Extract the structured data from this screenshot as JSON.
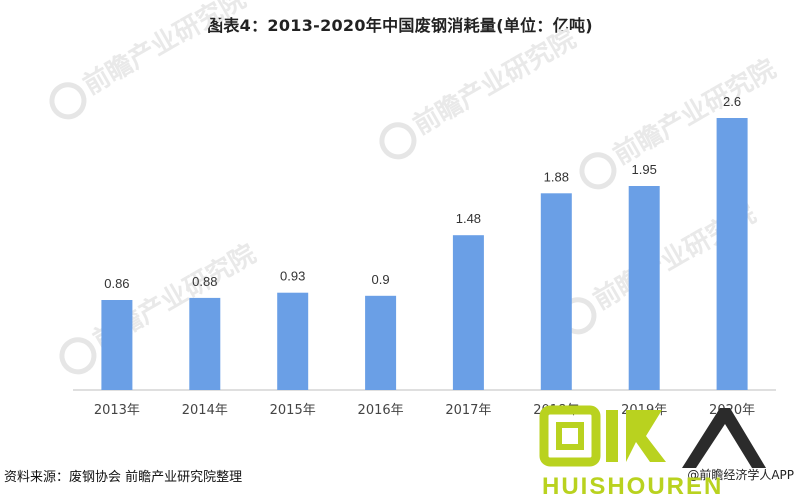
{
  "chart_data": {
    "type": "bar",
    "title": "图表4：2013-2020年中国废钢消耗量(单位：亿吨)",
    "categories": [
      "2013年",
      "2014年",
      "2015年",
      "2016年",
      "2017年",
      "2018年",
      "2019年",
      "2020年"
    ],
    "values": [
      0.86,
      0.88,
      0.93,
      0.9,
      1.48,
      1.88,
      1.95,
      2.6
    ],
    "value_labels": [
      "0.86",
      "0.88",
      "0.93",
      "0.9",
      "1.48",
      "1.88",
      "1.95",
      "2.6"
    ],
    "xlabel": "",
    "ylabel": "",
    "ylim": [
      0,
      2.6
    ],
    "grid": false,
    "legend": "none",
    "bar_color": "#6a9fe6"
  },
  "footer": {
    "source": "资料来源：废钢协会 前瞻产业研究院整理",
    "app_badge": "@前瞻经济学人APP"
  },
  "watermark": {
    "main_text": "回收",
    "sub_text": "HUISHOUREN",
    "color": "#b9d21f",
    "dark": "#2b2b2b"
  },
  "brand_watermark": "前瞻产业研究院"
}
